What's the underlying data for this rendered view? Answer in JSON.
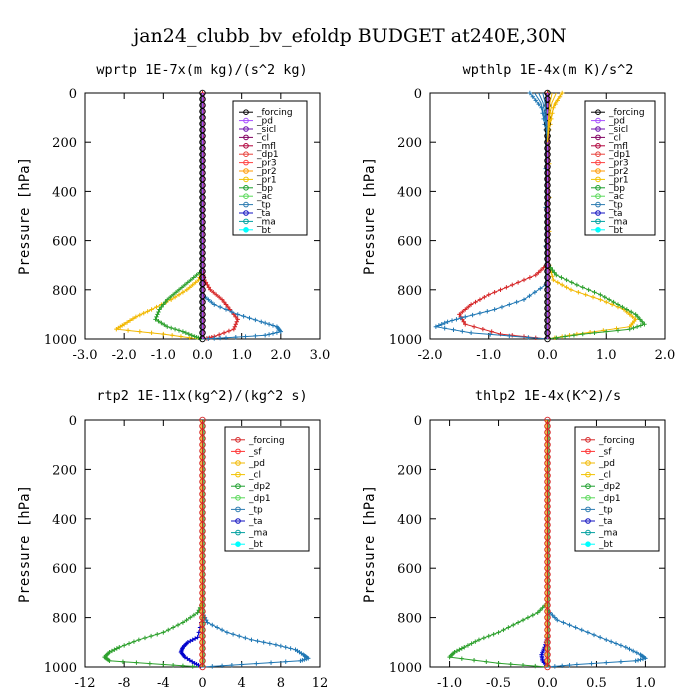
{
  "title": "jan24_clubb_bv_efoldp  BUDGET at240E,30N",
  "chart_data": [
    {
      "type": "line",
      "subtitle": "wprtp  1E-7x(m kg)/(s^2 kg)",
      "ylabel": "Pressure [hPa]",
      "xlim": [
        -3.0,
        3.0
      ],
      "xticks": [
        "-3.0",
        "-2.0",
        "-1.0",
        "0.0",
        "1.0",
        "2.0",
        "3.0"
      ],
      "ylim": [
        1000,
        0
      ],
      "yticks": [
        "0",
        "200",
        "400",
        "600",
        "800",
        "1000"
      ],
      "legend": [
        "_forcing",
        "_pd",
        "_sicl",
        "_cl",
        "_mfl",
        "_dp1",
        "_pr3",
        "_pr2",
        "_pr1",
        "_bp",
        "_ac",
        "_tp",
        "_ta",
        "_ma",
        "_bt"
      ],
      "series": [
        {
          "color": "#d62728",
          "x": [
            0,
            0,
            0.05,
            0.2,
            0.5,
            0.7,
            0.9,
            0.8,
            0.3,
            0.05
          ],
          "y": [
            0,
            720,
            760,
            800,
            840,
            880,
            920,
            960,
            990,
            1000
          ]
        },
        {
          "color": "#f2b800",
          "x": [
            0,
            -0.1,
            -0.4,
            -0.8,
            -1.3,
            -1.7,
            -2.0,
            -2.2,
            -1.0,
            -0.1
          ],
          "y": [
            720,
            760,
            800,
            840,
            880,
            910,
            940,
            960,
            980,
            1000
          ]
        },
        {
          "color": "#2ca02c",
          "x": [
            0,
            -0.3,
            -0.6,
            -0.9,
            -1.1,
            -1.2,
            -0.9,
            -0.5,
            -0.2,
            0
          ],
          "y": [
            720,
            760,
            800,
            840,
            880,
            920,
            950,
            970,
            990,
            1000
          ]
        },
        {
          "color": "#1f77b4",
          "x": [
            0,
            0.3,
            0.9,
            1.5,
            1.9,
            2.0,
            1.6,
            0.6,
            0
          ],
          "y": [
            820,
            860,
            900,
            930,
            950,
            970,
            985,
            995,
            1000
          ]
        }
      ]
    },
    {
      "type": "line",
      "subtitle": "wpthlp  1E-4x(m K)/s^2",
      "ylabel": "Pressure [hPa]",
      "xlim": [
        -2.0,
        2.0
      ],
      "xticks": [
        "-2.0",
        "-1.0",
        "0.0",
        "1.0",
        "2.0"
      ],
      "ylim": [
        1000,
        0
      ],
      "yticks": [
        "0",
        "200",
        "400",
        "600",
        "800",
        "1000"
      ],
      "legend": [
        "_forcing",
        "_pd",
        "_sicl",
        "_cl",
        "_mfl",
        "_dp1",
        "_pr3",
        "_pr2",
        "_pr1",
        "_bp",
        "_ac",
        "_tp",
        "_ta",
        "_ma",
        "_bt"
      ],
      "series": [
        {
          "color": "#f2b800",
          "x": [
            0.25,
            0.1,
            0.03,
            0.03,
            0.1,
            0.4,
            0.9,
            1.3,
            1.5,
            1.4,
            0.5,
            0
          ],
          "y": [
            0,
            60,
            150,
            700,
            760,
            800,
            840,
            880,
            920,
            950,
            980,
            1000
          ]
        },
        {
          "color": "#2ca02c",
          "x": [
            0.02,
            0.02,
            0.15,
            0.5,
            0.9,
            1.2,
            1.5,
            1.65,
            1.4,
            0.6,
            0
          ],
          "y": [
            0,
            700,
            740,
            780,
            820,
            860,
            900,
            940,
            960,
            980,
            1000
          ]
        },
        {
          "color": "#d62728",
          "x": [
            0,
            -0.02,
            -0.2,
            -0.6,
            -1.0,
            -1.3,
            -1.5,
            -1.4,
            -0.8,
            0
          ],
          "y": [
            0,
            700,
            740,
            780,
            820,
            860,
            900,
            940,
            980,
            1000
          ]
        },
        {
          "color": "#1f77b4",
          "x": [
            -0.3,
            -0.1,
            -0.03,
            -0.03,
            -0.4,
            -0.9,
            -1.4,
            -1.7,
            -1.9,
            -1.3,
            0
          ],
          "y": [
            0,
            60,
            150,
            780,
            840,
            880,
            910,
            930,
            950,
            975,
            1000
          ]
        }
      ]
    },
    {
      "type": "line",
      "subtitle": "rtp2  1E-11x(kg^2)/(kg^2 s)",
      "ylabel": "Pressure [hPa]",
      "xlim": [
        -12,
        12
      ],
      "xticks": [
        "-12",
        "-8",
        "-4",
        "0",
        "4",
        "8",
        "12"
      ],
      "ylim": [
        1000,
        0
      ],
      "yticks": [
        "0",
        "200",
        "400",
        "600",
        "800",
        "1000"
      ],
      "legend": [
        "_forcing",
        "_sf",
        "_pd",
        "_cl",
        "_dp2",
        "_dp1",
        "_tp",
        "_ta",
        "_ma",
        "_bt"
      ],
      "series": [
        {
          "color": "#2ca02c",
          "x": [
            0,
            -0.5,
            -2.0,
            -4.0,
            -6.5,
            -8.5,
            -9.5,
            -10.0,
            -9.5,
            -4.0,
            0
          ],
          "y": [
            740,
            780,
            820,
            860,
            890,
            920,
            940,
            960,
            975,
            990,
            1000
          ]
        },
        {
          "color": "#1f77b4",
          "x": [
            0,
            0.5,
            2.5,
            5.0,
            7.5,
            9.5,
            10.3,
            10.8,
            10.0,
            4.0,
            0
          ],
          "y": [
            780,
            820,
            860,
            890,
            910,
            930,
            950,
            965,
            975,
            990,
            1000
          ]
        },
        {
          "color": "#0000cc",
          "x": [
            0,
            -0.5,
            -1.5,
            -2.0,
            -2.2,
            -1.8,
            -0.8,
            0
          ],
          "y": [
            800,
            880,
            900,
            920,
            940,
            960,
            985,
            1000
          ]
        }
      ]
    },
    {
      "type": "line",
      "subtitle": "thlp2  1E-4x(K^2)/s",
      "ylabel": "Pressure [hPa]",
      "xlim": [
        -1.2,
        1.2
      ],
      "xticks": [
        "-1.0",
        "-0.5",
        "0.0",
        "0.5",
        "1.0"
      ],
      "ylim": [
        1000,
        0
      ],
      "yticks": [
        "0",
        "200",
        "400",
        "600",
        "800",
        "1000"
      ],
      "legend": [
        "_forcing",
        "_sf",
        "_pd",
        "_cl",
        "_dp2",
        "_dp1",
        "_tp",
        "_ta",
        "_ma",
        "_bt"
      ],
      "series": [
        {
          "color": "#2ca02c",
          "x": [
            0,
            -0.1,
            -0.3,
            -0.5,
            -0.7,
            -0.85,
            -0.95,
            -1.0,
            -0.5,
            0
          ],
          "y": [
            740,
            780,
            820,
            860,
            890,
            920,
            940,
            960,
            985,
            1000
          ]
        },
        {
          "color": "#1f77b4",
          "x": [
            0,
            0.1,
            0.35,
            0.6,
            0.8,
            0.95,
            1.0,
            0.9,
            0.3,
            0
          ],
          "y": [
            770,
            810,
            850,
            890,
            920,
            950,
            965,
            975,
            990,
            1000
          ]
        },
        {
          "color": "#0000cc",
          "x": [
            0,
            -0.03,
            -0.06,
            -0.05,
            0
          ],
          "y": [
            880,
            920,
            950,
            975,
            1000
          ]
        }
      ]
    }
  ],
  "styles": {
    "legend_colors": [
      "#000000",
      "#a64dff",
      "#6a0dad",
      "#800060",
      "#b0003a",
      "#e8403a",
      "#ff4040",
      "#ff9900",
      "#f2c200",
      "#1a9e2a",
      "#57d957",
      "#2a7ab0",
      "#1010c0",
      "#00a0a0",
      "#00ffff"
    ],
    "legend_colors_lower": [
      "#d62728",
      "#ff3333",
      "#f2b800",
      "#f2c200",
      "#1a9e2a",
      "#57d957",
      "#2a7ab0",
      "#1010c0",
      "#00a0a0",
      "#00ffff"
    ]
  }
}
